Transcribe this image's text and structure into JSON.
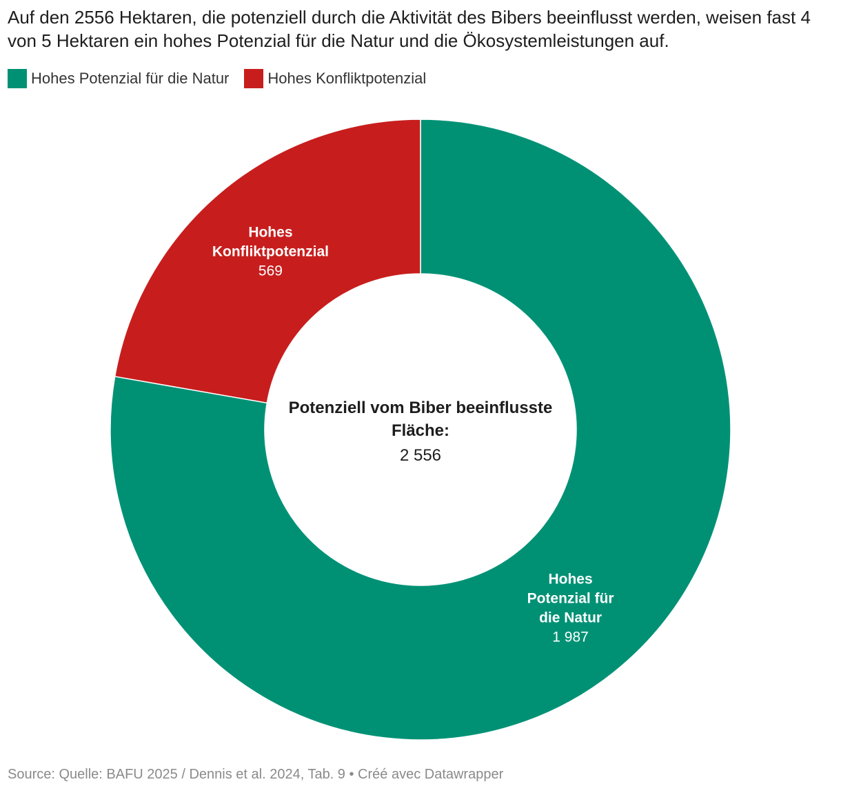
{
  "chart_data": {
    "type": "pie",
    "variant": "donut",
    "title": "Auf den 2556 Hektaren, die potenziell durch die Aktivität des Bibers beeinflusst werden, weisen fast 4 von 5 Hektaren ein hohes Potenzial für die Natur und die Ökosystemleistungen auf.",
    "legend_position": "top-left",
    "slices": [
      {
        "name": "Hohes Potenzial für die Natur",
        "label_lines": [
          "Hohes",
          "Potenzial für",
          "die Natur"
        ],
        "value": 1987,
        "value_label": "1 987",
        "color": "#009175"
      },
      {
        "name": "Hohes Konfliktpotenzial",
        "label_lines": [
          "Hohes",
          "Konfliktpotenzial"
        ],
        "value": 569,
        "value_label": "569",
        "color": "#c71e1d"
      }
    ],
    "center": {
      "label_lines": [
        "Potenziell vom Biber beeinflusste",
        "Fläche:"
      ],
      "value": 2556,
      "value_label": "2 556"
    }
  },
  "footer": {
    "source": "Source: Quelle: BAFU 2025 / Dennis et al. 2024, Tab. 9 • Créé avec Datawrapper"
  }
}
